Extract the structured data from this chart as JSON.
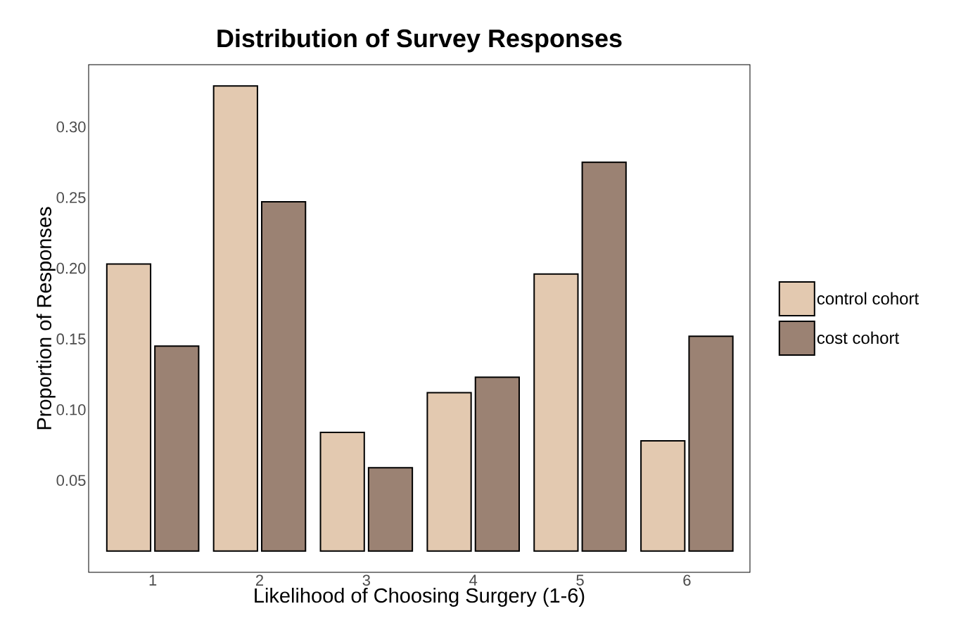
{
  "chart_data": {
    "type": "bar",
    "title": "Distribution of Survey Responses",
    "xlabel": "Likelihood of Choosing Surgery (1-6)",
    "ylabel": "Proportion of Responses",
    "categories": [
      "1",
      "2",
      "3",
      "4",
      "5",
      "6"
    ],
    "series": [
      {
        "name": "control cohort",
        "color": "#e3c9b0",
        "values": [
          0.203,
          0.329,
          0.084,
          0.112,
          0.196,
          0.078
        ]
      },
      {
        "name": "cost cohort",
        "color": "#9b8273",
        "values": [
          0.145,
          0.247,
          0.059,
          0.123,
          0.275,
          0.152
        ]
      }
    ],
    "ylim": [
      -0.015,
      0.344
    ],
    "yticks": [
      {
        "value": 0.05,
        "label": "0.05"
      },
      {
        "value": 0.1,
        "label": "0.10"
      },
      {
        "value": 0.15,
        "label": "0.15"
      },
      {
        "value": 0.2,
        "label": "0.20"
      },
      {
        "value": 0.25,
        "label": "0.25"
      },
      {
        "value": 0.3,
        "label": "0.30"
      }
    ],
    "grid": false,
    "legend": "right"
  }
}
